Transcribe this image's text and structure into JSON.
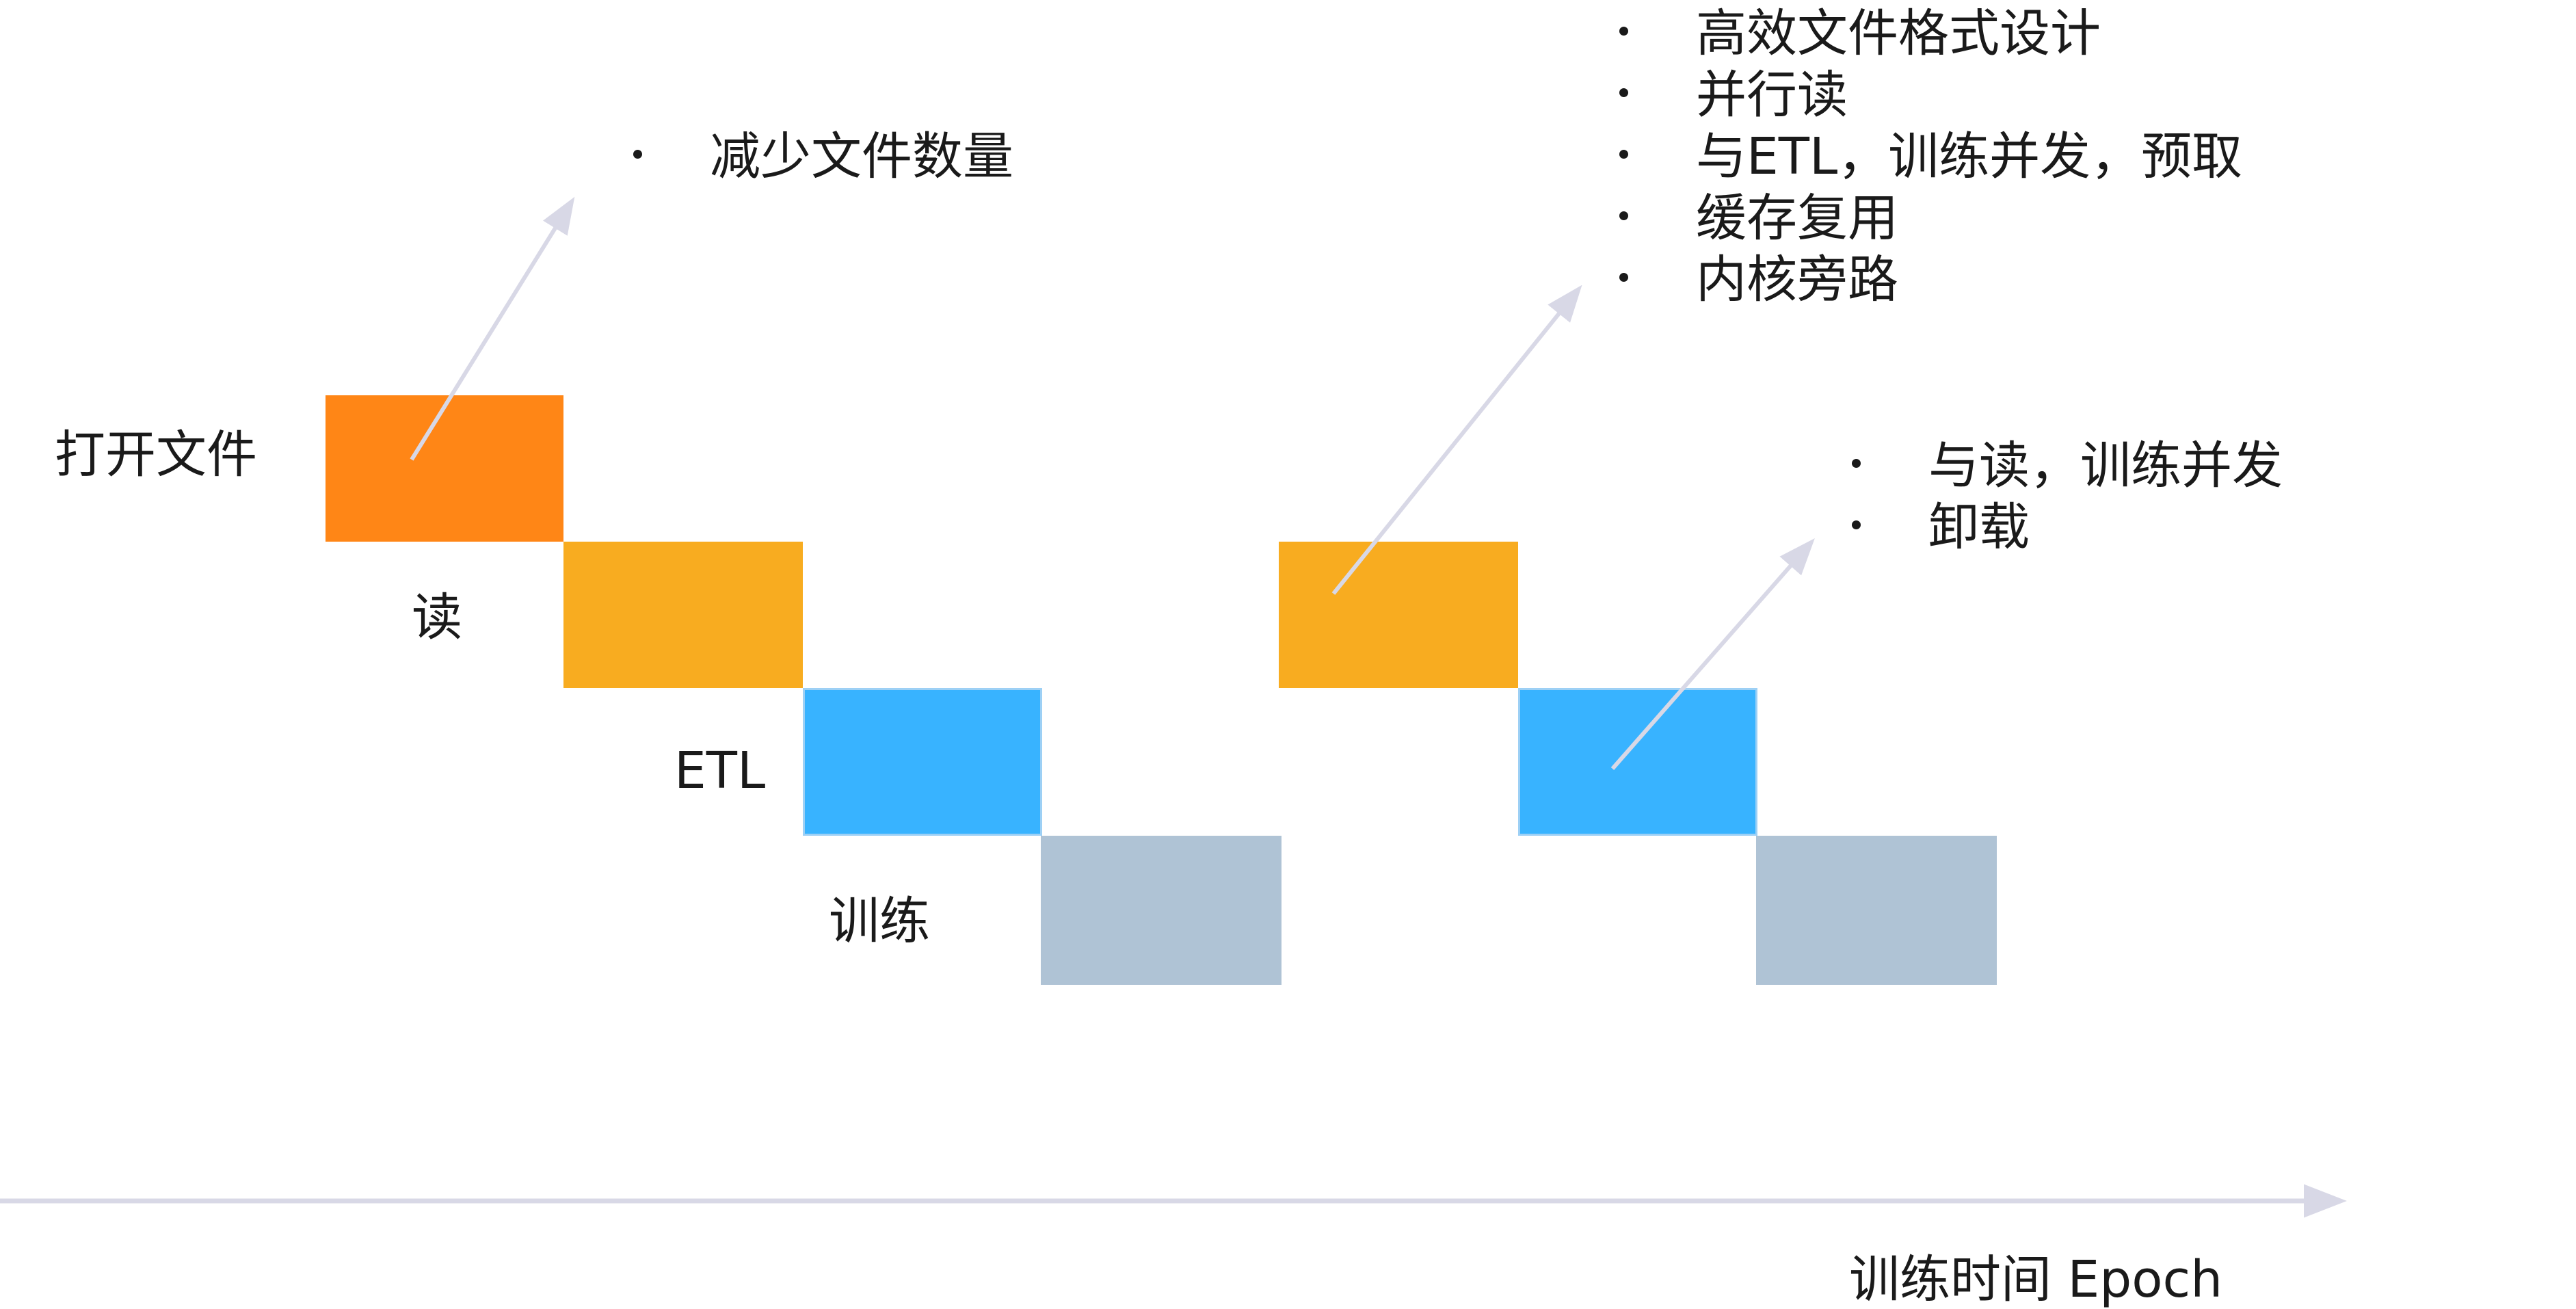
{
  "stages": {
    "open_file": "打开文件",
    "read": "读",
    "etl": "ETL",
    "train": "训练"
  },
  "bullets": {
    "open_file": [
      "减少文件数量"
    ],
    "read": [
      "高效文件格式设计",
      "并行读",
      "与ETL，训练并发，预取",
      "缓存复用",
      "内核旁路"
    ],
    "etl": [
      "与读，训练并发",
      "卸载"
    ]
  },
  "axis": {
    "label": "训练时间 Epoch"
  },
  "colors": {
    "open_file": "#FF8616",
    "read": "#F8AC20",
    "etl": "#38B3FF",
    "etl_border": "#9DD0F5",
    "train": "#AFC3D5",
    "arrow": "#D8D8E6",
    "text": "#1a1a1a"
  }
}
